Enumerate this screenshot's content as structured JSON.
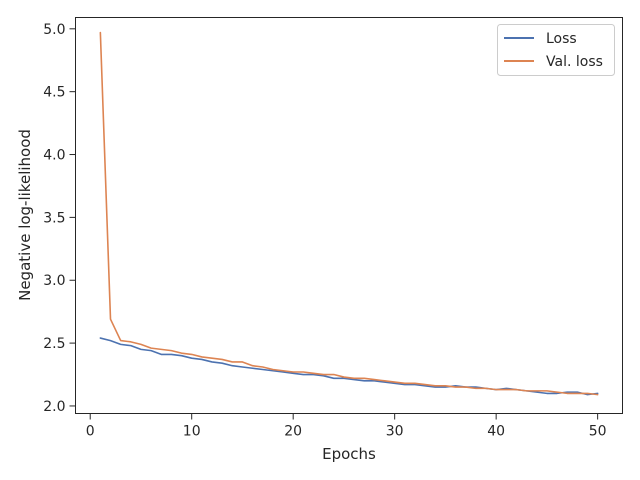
{
  "chart_data": {
    "type": "line",
    "title": "",
    "xlabel": "Epochs",
    "ylabel": "Negative log-likelihood",
    "xlim": [
      -1.45,
      52.45
    ],
    "ylim": [
      1.94,
      5.09
    ],
    "xticks": [
      0,
      10,
      20,
      30,
      40,
      50
    ],
    "xtick_labels": [
      "0",
      "10",
      "20",
      "30",
      "40",
      "50"
    ],
    "yticks": [
      2.0,
      2.5,
      3.0,
      3.5,
      4.0,
      4.5,
      5.0
    ],
    "ytick_labels": [
      "2.0",
      "2.5",
      "3.0",
      "3.5",
      "4.0",
      "4.5",
      "5.0"
    ],
    "grid": false,
    "legend_position": "top-right",
    "x": [
      1,
      2,
      3,
      4,
      5,
      6,
      7,
      8,
      9,
      10,
      11,
      12,
      13,
      14,
      15,
      16,
      17,
      18,
      19,
      20,
      21,
      22,
      23,
      24,
      25,
      26,
      27,
      28,
      29,
      30,
      31,
      32,
      33,
      34,
      35,
      36,
      37,
      38,
      39,
      40,
      41,
      42,
      43,
      44,
      45,
      46,
      47,
      48,
      49,
      50
    ],
    "series": [
      {
        "name": "Loss",
        "color": "#4c72b0",
        "values": [
          2.54,
          2.52,
          2.49,
          2.48,
          2.45,
          2.44,
          2.41,
          2.41,
          2.4,
          2.38,
          2.37,
          2.35,
          2.34,
          2.32,
          2.31,
          2.3,
          2.29,
          2.28,
          2.27,
          2.26,
          2.25,
          2.25,
          2.24,
          2.22,
          2.22,
          2.21,
          2.2,
          2.2,
          2.19,
          2.18,
          2.17,
          2.17,
          2.16,
          2.15,
          2.15,
          2.16,
          2.15,
          2.15,
          2.14,
          2.13,
          2.14,
          2.13,
          2.12,
          2.11,
          2.1,
          2.1,
          2.11,
          2.11,
          2.09,
          2.1
        ]
      },
      {
        "name": "Val. loss",
        "color": "#dd8452",
        "values": [
          4.97,
          2.69,
          2.52,
          2.51,
          2.49,
          2.46,
          2.45,
          2.44,
          2.42,
          2.41,
          2.39,
          2.38,
          2.37,
          2.35,
          2.35,
          2.32,
          2.31,
          2.29,
          2.28,
          2.27,
          2.27,
          2.26,
          2.25,
          2.25,
          2.23,
          2.22,
          2.22,
          2.21,
          2.2,
          2.19,
          2.18,
          2.18,
          2.17,
          2.16,
          2.16,
          2.15,
          2.15,
          2.14,
          2.14,
          2.13,
          2.13,
          2.13,
          2.12,
          2.12,
          2.12,
          2.11,
          2.1,
          2.1,
          2.1,
          2.09
        ]
      }
    ]
  }
}
